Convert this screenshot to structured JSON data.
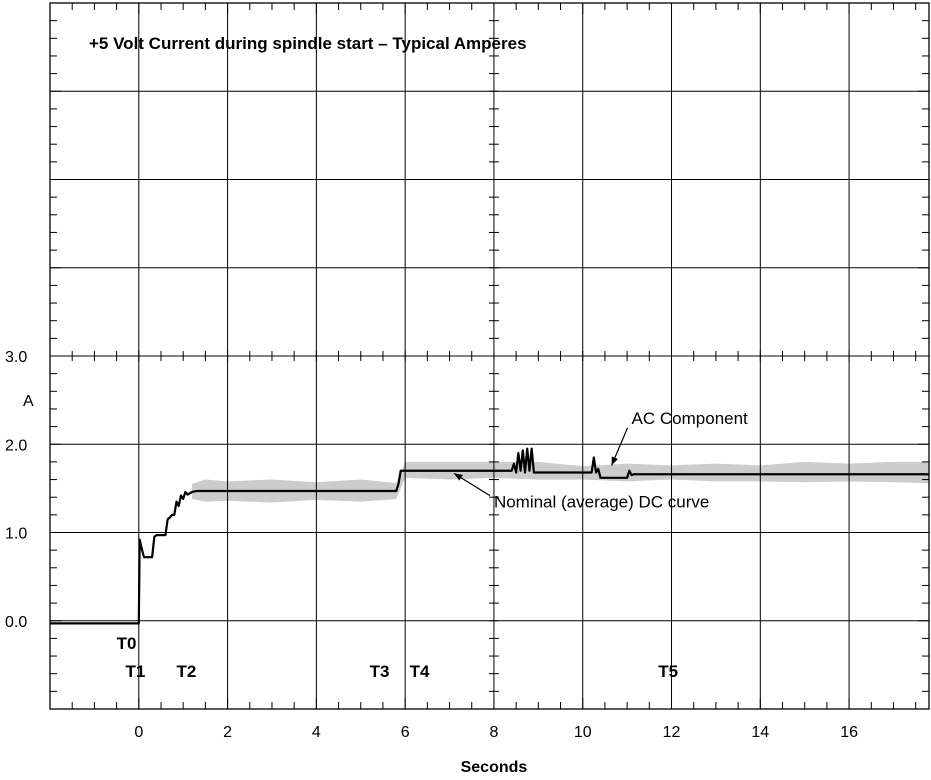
{
  "chart_data": {
    "type": "line",
    "title": "+5 Volt Current during spindle start – Typical Amperes",
    "xlabel": "Seconds",
    "ylabel": "A",
    "xlim": [
      -2,
      17.8
    ],
    "ylim": [
      -1,
      7
    ],
    "grid": true,
    "x_ticks": [
      0,
      2,
      4,
      6,
      8,
      10,
      12,
      14,
      16
    ],
    "x_tick_labels": [
      "0",
      "2",
      "4",
      "6",
      "8",
      "10",
      "12",
      "14",
      "16"
    ],
    "y_ticks": [
      0,
      1,
      2,
      3
    ],
    "y_tick_labels": [
      "0.0",
      "1.0",
      "2.0",
      "3.0"
    ],
    "series": [
      {
        "name": "Nominal (average) DC curve",
        "x": [
          -2,
          0,
          0.02,
          0.05,
          0.1,
          0.12,
          0.15,
          0.2,
          0.3,
          0.35,
          0.4,
          0.5,
          0.6,
          0.65,
          0.7,
          0.75,
          0.8,
          0.85,
          0.9,
          0.95,
          1.0,
          1.05,
          1.1,
          1.2,
          1.3,
          1.4,
          2,
          3,
          4,
          5,
          5.8,
          5.85,
          5.9,
          6.0,
          6.5,
          7,
          8,
          8.4,
          8.45,
          8.5,
          8.55,
          8.6,
          8.65,
          8.7,
          8.75,
          8.8,
          8.85,
          8.9,
          9.5,
          10.0,
          10.2,
          10.25,
          10.3,
          10.35,
          10.4,
          10.5,
          10.6,
          10.65,
          11.0,
          11.05,
          11.1,
          11.15,
          12,
          14,
          16,
          17.8
        ],
        "y": [
          -0.03,
          -0.03,
          0.92,
          0.85,
          0.75,
          0.72,
          0.72,
          0.72,
          0.72,
          0.95,
          0.97,
          0.97,
          0.97,
          1.15,
          1.17,
          1.2,
          1.2,
          1.35,
          1.3,
          1.42,
          1.38,
          1.46,
          1.43,
          1.46,
          1.47,
          1.47,
          1.47,
          1.47,
          1.47,
          1.47,
          1.47,
          1.55,
          1.7,
          1.7,
          1.7,
          1.7,
          1.7,
          1.7,
          1.78,
          1.68,
          1.9,
          1.7,
          1.93,
          1.68,
          1.95,
          1.7,
          1.95,
          1.68,
          1.68,
          1.68,
          1.68,
          1.85,
          1.68,
          1.72,
          1.62,
          1.62,
          1.62,
          1.62,
          1.62,
          1.7,
          1.65,
          1.66,
          1.66,
          1.66,
          1.66,
          1.66
        ]
      },
      {
        "name": "AC Component",
        "x": [
          1.2,
          1.5,
          2,
          3,
          4,
          5,
          5.8,
          6.0,
          7,
          8,
          9,
          10,
          11,
          12,
          13,
          14,
          15,
          16,
          17,
          17.8
        ],
        "y_upper": [
          1.55,
          1.6,
          1.58,
          1.6,
          1.57,
          1.6,
          1.56,
          1.8,
          1.8,
          1.8,
          1.8,
          1.75,
          1.78,
          1.76,
          1.78,
          1.76,
          1.8,
          1.78,
          1.8,
          1.8
        ],
        "y_lower": [
          1.38,
          1.35,
          1.36,
          1.34,
          1.37,
          1.35,
          1.38,
          1.62,
          1.6,
          1.62,
          1.6,
          1.6,
          1.58,
          1.6,
          1.58,
          1.58,
          1.57,
          1.58,
          1.57,
          1.56
        ]
      }
    ],
    "annotations": [
      {
        "text": "AC Component",
        "x": 11.1,
        "y": 2.3,
        "target_x": 10.65,
        "target_y": 1.76
      },
      {
        "text": "Nominal (average) DC curve",
        "x": 8.0,
        "y": 1.35,
        "target_x": 7.1,
        "target_y": 1.67
      }
    ],
    "markers": [
      {
        "label": "T0",
        "x": -0.5,
        "y": -0.25
      },
      {
        "label": "T1",
        "x": -0.3,
        "y": -0.57
      },
      {
        "label": "T2",
        "x": 0.85,
        "y": -0.57
      },
      {
        "label": "T3",
        "x": 5.2,
        "y": -0.57
      },
      {
        "label": "T4",
        "x": 6.1,
        "y": -0.57
      },
      {
        "label": "T5",
        "x": 11.7,
        "y": -0.57
      }
    ],
    "colors": {
      "line": "#000000",
      "ac_band": "#cccccc",
      "grid": "#000000",
      "background": "#ffffff"
    }
  }
}
